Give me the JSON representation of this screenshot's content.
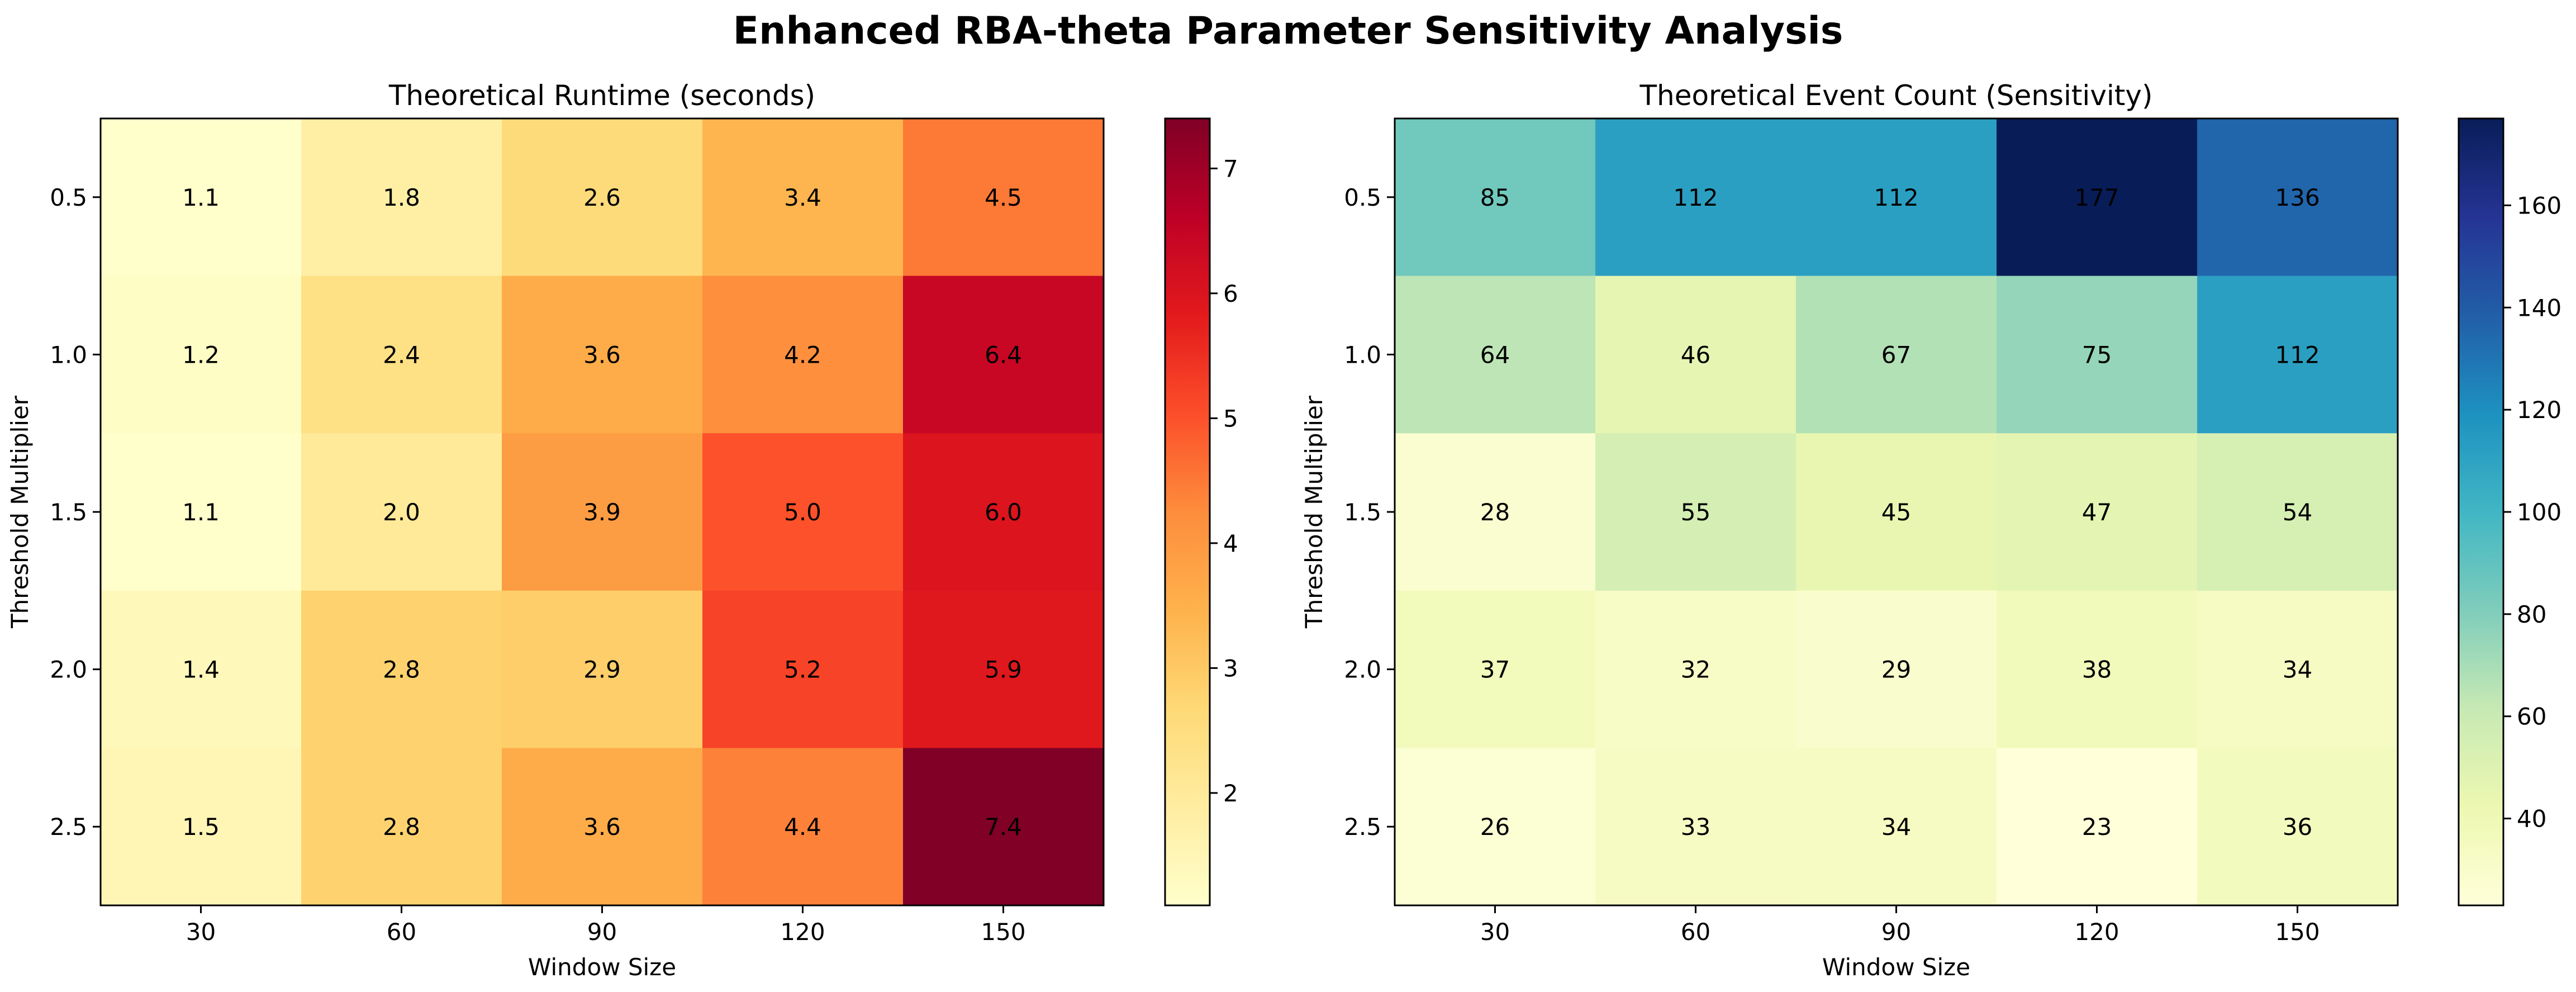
{
  "figure": {
    "title": "Enhanced RBA-theta Parameter Sensitivity Analysis"
  },
  "chart_data": [
    {
      "type": "heatmap",
      "title": "Theoretical Runtime (seconds)",
      "xlabel": "Window Size",
      "ylabel": "Threshold Multiplier",
      "x": [
        "30",
        "60",
        "90",
        "120",
        "150"
      ],
      "y": [
        "0.5",
        "1.0",
        "1.5",
        "2.0",
        "2.5"
      ],
      "values": [
        [
          1.1,
          1.8,
          2.6,
          3.4,
          4.5
        ],
        [
          1.2,
          2.4,
          3.6,
          4.2,
          6.4
        ],
        [
          1.1,
          2.0,
          3.9,
          5.0,
          6.0
        ],
        [
          1.4,
          2.8,
          2.9,
          5.2,
          5.9
        ],
        [
          1.5,
          2.8,
          3.6,
          4.4,
          7.4
        ]
      ],
      "value_format": "1",
      "colormap": "YlOrRd",
      "colorbar": {
        "vmin": 1.1,
        "vmax": 7.4,
        "ticks": [
          2,
          3,
          4,
          5,
          6,
          7
        ]
      }
    },
    {
      "type": "heatmap",
      "title": "Theoretical Event Count (Sensitivity)",
      "xlabel": "Window Size",
      "ylabel": "Threshold Multiplier",
      "x": [
        "30",
        "60",
        "90",
        "120",
        "150"
      ],
      "y": [
        "0.5",
        "1.0",
        "1.5",
        "2.0",
        "2.5"
      ],
      "values": [
        [
          85,
          112,
          112,
          177,
          136
        ],
        [
          64,
          46,
          67,
          75,
          112
        ],
        [
          28,
          55,
          45,
          47,
          54
        ],
        [
          37,
          32,
          29,
          38,
          34
        ],
        [
          26,
          33,
          34,
          23,
          36
        ]
      ],
      "value_format": "0",
      "colormap": "YlGnBu",
      "colorbar": {
        "vmin": 23,
        "vmax": 177,
        "ticks": [
          40,
          60,
          80,
          100,
          120,
          140,
          160
        ]
      }
    }
  ]
}
